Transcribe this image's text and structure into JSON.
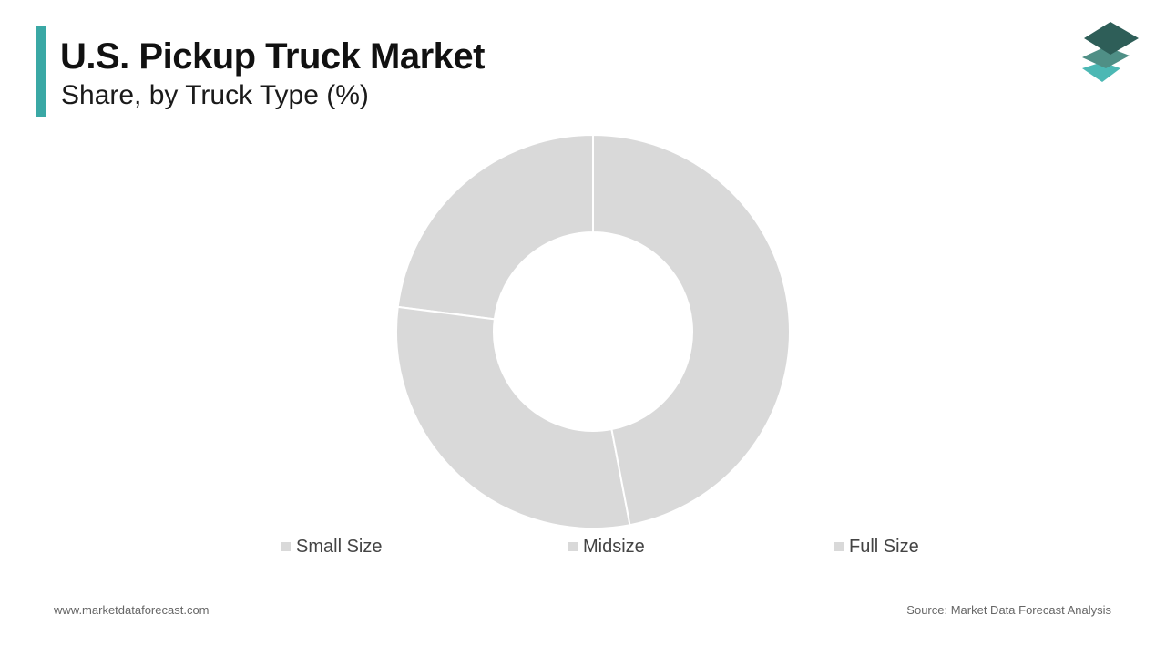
{
  "header": {
    "title": "U.S. Pickup Truck Market",
    "subtitle": "Share, by Truck Type (%)"
  },
  "colors": {
    "accent": "#3aa8a5",
    "slice": "#d9d9d9",
    "slice_border": "#ffffff",
    "logo_top": "#2e5e58",
    "logo_mid": "#4f8f86",
    "logo_bottom": "#4cb8b4"
  },
  "logo": {
    "icon": "stacked-layers-icon"
  },
  "chart_data": {
    "type": "pie",
    "variant": "donut",
    "title": "",
    "categories": [
      "Small Size",
      "Midsize",
      "Full Size"
    ],
    "values": [
      23,
      30,
      47
    ],
    "start": "top",
    "direction": "counterclockwise",
    "legend_position": "bottom"
  },
  "legend": {
    "items": [
      "Small Size",
      "Midsize",
      "Full Size"
    ]
  },
  "footer": {
    "website": "www.marketdataforecast.com",
    "source": "Source: Market Data Forecast Analysis"
  }
}
